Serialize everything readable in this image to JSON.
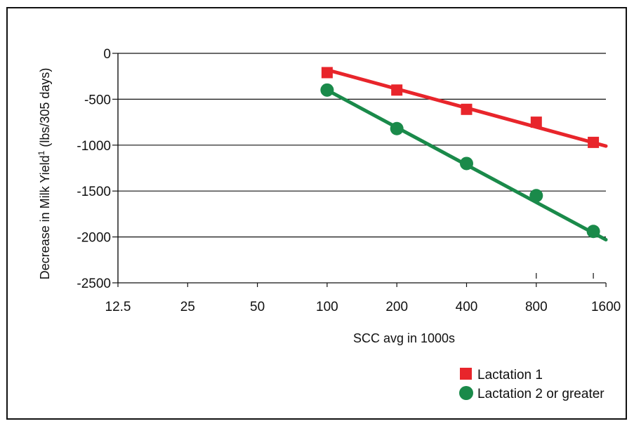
{
  "chart_data": {
    "type": "line",
    "xscale": "log2",
    "x_ticks": [
      12.5,
      25,
      50,
      100,
      200,
      400,
      800,
      1600
    ],
    "x_tick_labels": [
      "12.5",
      "25",
      "50",
      "100",
      "200",
      "400",
      "800",
      "1600"
    ],
    "y_ticks": [
      0,
      -500,
      -1000,
      -1500,
      -2000,
      -2500
    ],
    "y_tick_labels": [
      "0",
      "-500",
      "-1000",
      "-1500",
      "-2000",
      "-2500"
    ],
    "ylim": [
      -2500,
      0
    ],
    "xlabel": "SCC avg in 1000s",
    "ylabel": "Decrease in Milk Yield",
    "ylabel_sup": "1",
    "ylabel_suffix": " (lbs/305 days)",
    "grid": "horizontal",
    "legend_position": "bottom-right",
    "series": [
      {
        "name": "Lactation 1",
        "marker": "square",
        "color": "#e8252b",
        "x": [
          100,
          200,
          400,
          800,
          1600
        ],
        "values": [
          -210,
          -400,
          -610,
          -750,
          -970
        ],
        "fit_line": {
          "x": [
            100,
            1900
          ],
          "values": [
            -180,
            -1010
          ]
        }
      },
      {
        "name": "Lactation 2 or greater",
        "marker": "circle",
        "color": "#1a8a4a",
        "x": [
          100,
          200,
          400,
          800,
          1600
        ],
        "values": [
          -400,
          -820,
          -1200,
          -1550,
          -1940
        ],
        "fit_line": {
          "x": [
            100,
            1900
          ],
          "values": [
            -400,
            -2030
          ]
        }
      }
    ]
  }
}
